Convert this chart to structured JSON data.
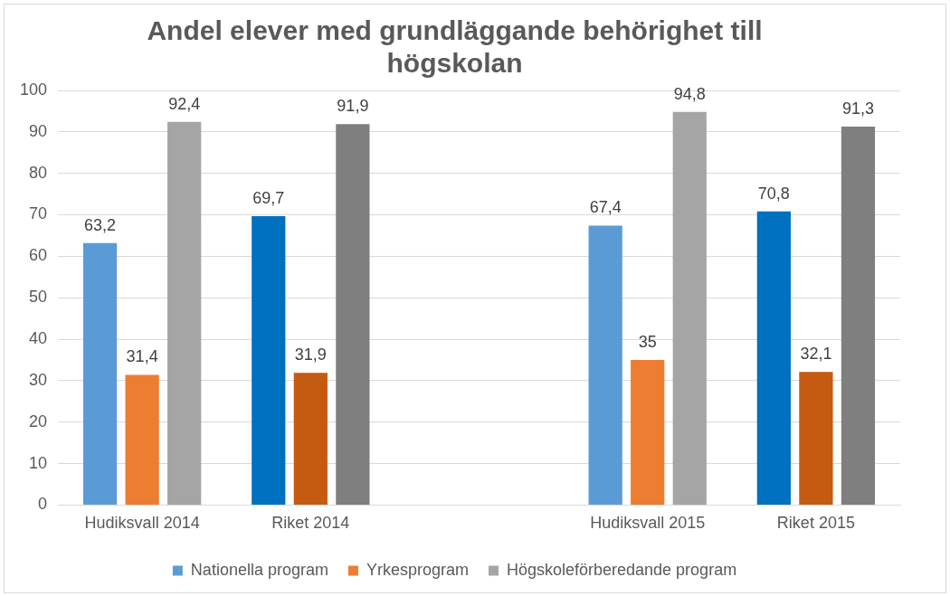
{
  "chart_data": {
    "type": "bar",
    "title": "Andel elever med grundläggande behörighet till högskolan",
    "categories": [
      "Hudiksvall 2014",
      "Riket 2014",
      null,
      "Hudiksvall 2015",
      "Riket 2015"
    ],
    "series": [
      {
        "name": "Nationella program",
        "color": "#5b9bd5",
        "colors": [
          "#5b9bd5",
          "#0070c0",
          null,
          "#5b9bd5",
          "#0070c0"
        ],
        "values": [
          63.2,
          69.7,
          null,
          67.4,
          70.8
        ],
        "value_labels": [
          "63,2",
          "69,7",
          null,
          "67,4",
          "70,8"
        ]
      },
      {
        "name": "Yrkesprogram",
        "color": "#ed7d31",
        "colors": [
          "#ed7d31",
          "#c55a11",
          null,
          "#ed7d31",
          "#c55a11"
        ],
        "values": [
          31.4,
          31.9,
          null,
          35,
          32.1
        ],
        "value_labels": [
          "31,4",
          "31,9",
          null,
          "35",
          "32,1"
        ]
      },
      {
        "name": "Högskoleförberedande program",
        "color": "#a5a5a5",
        "colors": [
          "#a5a5a5",
          "#7f7f7f",
          null,
          "#a5a5a5",
          "#7f7f7f"
        ],
        "values": [
          92.4,
          91.9,
          null,
          94.8,
          91.3
        ],
        "value_labels": [
          "92,4",
          "91,9",
          null,
          "94,8",
          "91,3"
        ]
      }
    ],
    "ylim": [
      0,
      100
    ],
    "yticks": [
      0,
      10,
      20,
      30,
      40,
      50,
      60,
      70,
      80,
      90,
      100
    ],
    "grid": "y",
    "legend": "bottom"
  }
}
